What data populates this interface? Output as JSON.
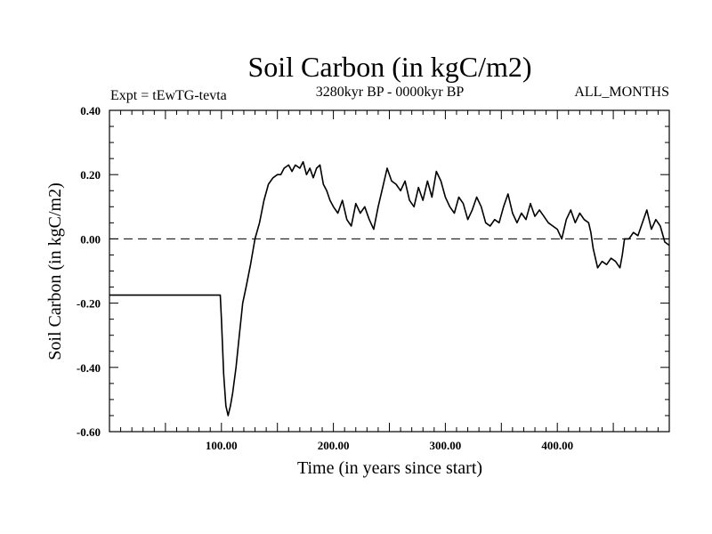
{
  "chart_data": {
    "type": "line",
    "title": "Soil Carbon (in kgC/m2)",
    "subtitle_left": "Expt = tEwTG-tevta",
    "subtitle_center": "3280kyr BP - 0000kyr BP",
    "subtitle_right": "ALL_MONTHS",
    "xlabel": "Time (in years since start)",
    "ylabel": "Soil Carbon (in kgC/m2)",
    "xlim": [
      0,
      500
    ],
    "ylim": [
      -0.6,
      0.4
    ],
    "x_ticks": [
      100,
      200,
      300,
      400
    ],
    "x_tick_labels": [
      "100.00",
      "200.00",
      "300.00",
      "400.00"
    ],
    "y_ticks": [
      -0.6,
      -0.4,
      -0.2,
      0.0,
      0.2,
      0.4
    ],
    "y_tick_labels": [
      "-0.60",
      "-0.40",
      "-0.20",
      "0.00",
      "0.20",
      "0.40"
    ],
    "reference_line": {
      "y": 0.0,
      "style": "dashed"
    },
    "series": [
      {
        "name": "Soil Carbon",
        "points": [
          [
            0,
            -0.175
          ],
          [
            99,
            -0.175
          ],
          [
            100,
            -0.25
          ],
          [
            102,
            -0.42
          ],
          [
            104,
            -0.52
          ],
          [
            106,
            -0.55
          ],
          [
            108,
            -0.52
          ],
          [
            110,
            -0.48
          ],
          [
            113,
            -0.4
          ],
          [
            116,
            -0.3
          ],
          [
            119,
            -0.2
          ],
          [
            122,
            -0.15
          ],
          [
            126,
            -0.08
          ],
          [
            130,
            0.0
          ],
          [
            134,
            0.05
          ],
          [
            138,
            0.12
          ],
          [
            142,
            0.17
          ],
          [
            146,
            0.19
          ],
          [
            150,
            0.2
          ],
          [
            153,
            0.2
          ],
          [
            156,
            0.22
          ],
          [
            160,
            0.23
          ],
          [
            163,
            0.21
          ],
          [
            166,
            0.23
          ],
          [
            170,
            0.22
          ],
          [
            173,
            0.24
          ],
          [
            176,
            0.2
          ],
          [
            179,
            0.22
          ],
          [
            182,
            0.19
          ],
          [
            185,
            0.22
          ],
          [
            188,
            0.23
          ],
          [
            191,
            0.17
          ],
          [
            194,
            0.15
          ],
          [
            197,
            0.12
          ],
          [
            200,
            0.1
          ],
          [
            204,
            0.08
          ],
          [
            208,
            0.12
          ],
          [
            212,
            0.06
          ],
          [
            216,
            0.04
          ],
          [
            220,
            0.11
          ],
          [
            224,
            0.08
          ],
          [
            228,
            0.1
          ],
          [
            232,
            0.06
          ],
          [
            236,
            0.03
          ],
          [
            240,
            0.1
          ],
          [
            244,
            0.16
          ],
          [
            248,
            0.22
          ],
          [
            252,
            0.18
          ],
          [
            256,
            0.17
          ],
          [
            260,
            0.15
          ],
          [
            264,
            0.18
          ],
          [
            268,
            0.12
          ],
          [
            272,
            0.1
          ],
          [
            276,
            0.16
          ],
          [
            280,
            0.12
          ],
          [
            284,
            0.18
          ],
          [
            288,
            0.13
          ],
          [
            292,
            0.21
          ],
          [
            296,
            0.18
          ],
          [
            300,
            0.13
          ],
          [
            304,
            0.1
          ],
          [
            308,
            0.08
          ],
          [
            312,
            0.13
          ],
          [
            316,
            0.11
          ],
          [
            320,
            0.06
          ],
          [
            324,
            0.09
          ],
          [
            328,
            0.13
          ],
          [
            332,
            0.1
          ],
          [
            336,
            0.05
          ],
          [
            340,
            0.04
          ],
          [
            344,
            0.06
          ],
          [
            348,
            0.05
          ],
          [
            352,
            0.1
          ],
          [
            356,
            0.14
          ],
          [
            360,
            0.08
          ],
          [
            364,
            0.05
          ],
          [
            368,
            0.08
          ],
          [
            372,
            0.06
          ],
          [
            376,
            0.11
          ],
          [
            380,
            0.07
          ],
          [
            384,
            0.09
          ],
          [
            388,
            0.07
          ],
          [
            392,
            0.05
          ],
          [
            396,
            0.04
          ],
          [
            400,
            0.03
          ],
          [
            404,
            0.0
          ],
          [
            408,
            0.06
          ],
          [
            412,
            0.09
          ],
          [
            416,
            0.05
          ],
          [
            420,
            0.08
          ],
          [
            424,
            0.06
          ],
          [
            428,
            0.05
          ],
          [
            430,
            0.02
          ],
          [
            432,
            -0.03
          ],
          [
            434,
            -0.06
          ],
          [
            436,
            -0.09
          ],
          [
            440,
            -0.07
          ],
          [
            444,
            -0.08
          ],
          [
            448,
            -0.06
          ],
          [
            452,
            -0.07
          ],
          [
            456,
            -0.09
          ],
          [
            458,
            -0.05
          ],
          [
            460,
            0.0
          ],
          [
            464,
            0.0
          ],
          [
            468,
            0.02
          ],
          [
            472,
            0.01
          ],
          [
            476,
            0.05
          ],
          [
            480,
            0.09
          ],
          [
            484,
            0.03
          ],
          [
            488,
            0.06
          ],
          [
            492,
            0.04
          ],
          [
            496,
            -0.01
          ],
          [
            500,
            -0.02
          ]
        ]
      }
    ]
  }
}
